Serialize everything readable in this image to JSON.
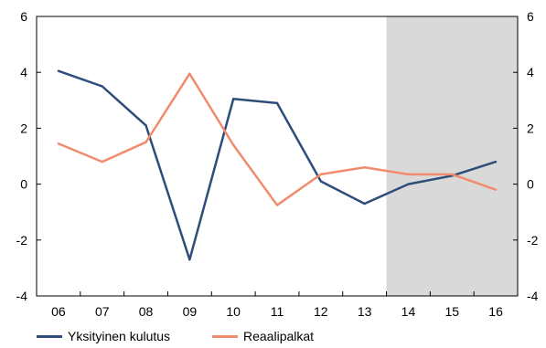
{
  "chart_data": {
    "type": "line",
    "title": "",
    "xlabel": "",
    "ylabel": "",
    "categories": [
      "06",
      "07",
      "08",
      "09",
      "10",
      "11",
      "12",
      "13",
      "14",
      "15",
      "16"
    ],
    "ylim": [
      -4,
      6
    ],
    "yticks": [
      "6",
      "4",
      "2",
      "0",
      "-2",
      "-4"
    ],
    "grid": false,
    "forecast_shaded_from": "13.5",
    "legend_position": "bottom-left",
    "series": [
      {
        "name": "Yksityinen kulutus",
        "color": "#2e4d7b",
        "values": [
          4.05,
          3.5,
          2.1,
          -2.7,
          3.05,
          2.9,
          0.1,
          -0.7,
          0.0,
          0.3,
          0.8
        ]
      },
      {
        "name": "Reaalipalkat",
        "color": "#f28b6e",
        "values": [
          1.45,
          0.8,
          1.5,
          3.95,
          1.4,
          -0.75,
          0.35,
          0.6,
          0.35,
          0.35,
          -0.2
        ]
      }
    ]
  },
  "colors": {
    "shade": "#d9d9d9",
    "axis": "#000000"
  }
}
